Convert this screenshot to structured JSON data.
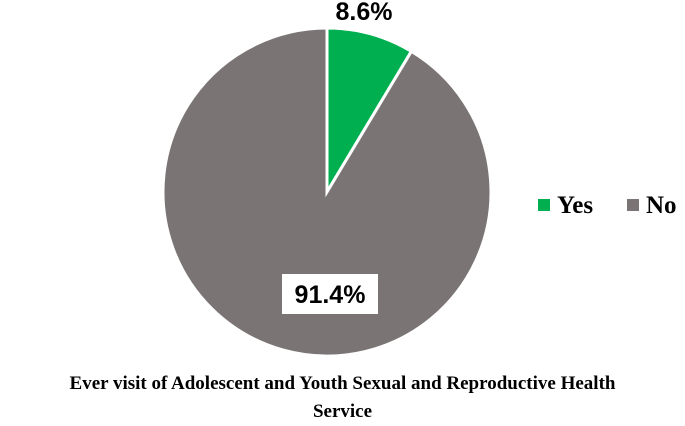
{
  "chart_data": {
    "type": "pie",
    "categories": [
      "Yes",
      "No"
    ],
    "values": [
      8.6,
      91.4
    ],
    "data_labels": [
      "8.6%",
      "91.4%"
    ],
    "colors": [
      "#00b050",
      "#7a7474"
    ],
    "legend_placement": "right",
    "start_angle": "12 o'clock, clockwise",
    "title": "",
    "caption_line1": "Ever visit of Adolescent and Youth Sexual and Reproductive Health",
    "caption_line2": "Service"
  }
}
